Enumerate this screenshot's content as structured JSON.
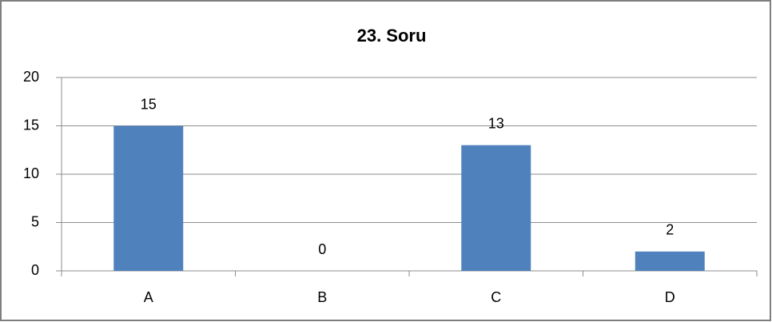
{
  "chart_data": {
    "type": "bar",
    "title": "23. Soru",
    "categories": [
      "A",
      "B",
      "C",
      "D"
    ],
    "values": [
      15,
      0,
      13,
      2
    ],
    "color": "#4f81bd",
    "ylim": [
      0,
      20
    ],
    "yticks": [
      0,
      5,
      10,
      15,
      20
    ],
    "grid": true
  }
}
